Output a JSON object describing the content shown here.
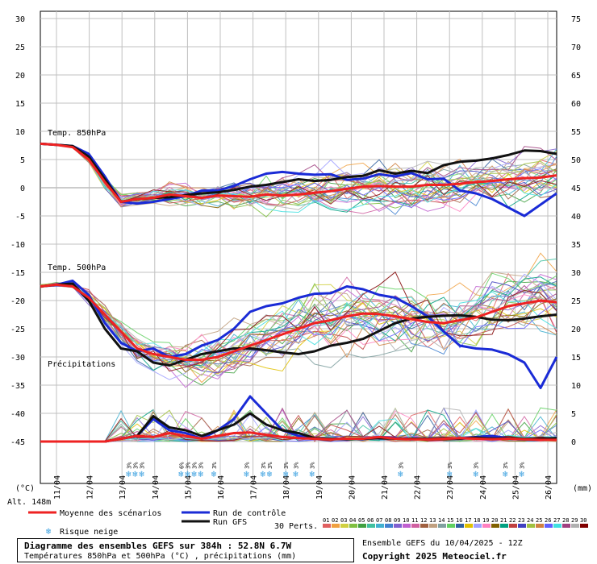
{
  "chart_data": {
    "type": "line",
    "left_axis": {
      "unit": "(°C)",
      "ticks": [
        30,
        25,
        20,
        15,
        10,
        5,
        0,
        -5,
        -10,
        -15,
        -20,
        -25,
        -30,
        -35,
        -40,
        -45
      ],
      "ylim": [
        -45,
        30
      ]
    },
    "right_axis": {
      "unit": "(mm)",
      "ticks": [
        75,
        70,
        65,
        60,
        55,
        50,
        45,
        40,
        35,
        30,
        25,
        20,
        15,
        10,
        5,
        0
      ],
      "ylim": [
        0,
        75
      ]
    },
    "x_tick_labels": [
      "11/04",
      "12/04",
      "13/04",
      "14/04",
      "15/04",
      "16/04",
      "17/04",
      "18/04",
      "19/04",
      "20/04",
      "21/04",
      "22/04",
      "23/04",
      "24/04",
      "25/04",
      "26/04"
    ],
    "grid": true,
    "panel_labels": {
      "t850": "Temp. 850hPa",
      "t500": "Temp. 500hPa",
      "precip": "Précipitations"
    },
    "altitude": "Alt. 148m",
    "series": [
      {
        "name": "Moyenne des scénarios",
        "color": "#ee2222",
        "t850": [
          7.8,
          7.6,
          7.2,
          5,
          1,
          -2.5,
          -2,
          -1.8,
          -1.2,
          -1.5,
          -1.8,
          -1.4,
          -1.5,
          -1.6,
          -1.2,
          -1.4,
          -1.2,
          -0.9,
          -0.6,
          -0.2,
          0.2,
          0.3,
          0.2,
          0.2,
          0.5,
          0.5,
          0.7,
          1,
          1.2,
          1.5,
          1.7,
          1.8,
          2.2
        ],
        "t500": [
          -17.5,
          -17.2,
          -17.5,
          -19.5,
          -22.5,
          -25.5,
          -28.5,
          -29.5,
          -30,
          -30.5,
          -30.5,
          -30,
          -29,
          -28,
          -27,
          -26,
          -25,
          -24,
          -23.5,
          -22.8,
          -22.3,
          -22.4,
          -22.8,
          -23.3,
          -23.8,
          -24,
          -23.5,
          -23,
          -22,
          -21,
          -20.5,
          -20,
          -20.3
        ],
        "precip": [
          0,
          0,
          0,
          0,
          0,
          0.5,
          1,
          0.8,
          1.5,
          1,
          0.5,
          1,
          1.5,
          1.6,
          1.2,
          0.8,
          0.6,
          0.5,
          0.4,
          0.5,
          0.5,
          0.8,
          0.5,
          0.4,
          0.4,
          0.5,
          0.6,
          0.5,
          0.4,
          0.5,
          0.4,
          0.3,
          0.3
        ]
      },
      {
        "name": "Run de contrôle",
        "color": "#1a2bd6",
        "t850": [
          7.8,
          7.6,
          7.4,
          6,
          2,
          -2.5,
          -2.8,
          -2.5,
          -2,
          -1.5,
          -0.5,
          -0.5,
          0.3,
          1.5,
          2.5,
          2.8,
          2.5,
          2.3,
          2.4,
          1.4,
          1.6,
          2.4,
          2,
          2.6,
          1.5,
          1.6,
          -0.5,
          -1,
          -2,
          -3.5,
          -5,
          -3,
          -1
        ],
        "t500": [
          -17.5,
          -17.2,
          -16.5,
          -19,
          -24,
          -27.5,
          -29,
          -28.5,
          -30,
          -29.5,
          -28,
          -27,
          -25,
          -22,
          -21,
          -20.5,
          -19.5,
          -18.8,
          -18.7,
          -17.5,
          -18,
          -19,
          -19.5,
          -21,
          -22.8,
          -25.5,
          -28,
          -28.5,
          -28.7,
          -29.5,
          -31,
          -35.5,
          -30
        ],
        "precip": [
          0,
          0,
          0,
          0,
          0,
          0.5,
          1,
          4,
          2,
          1.5,
          0.5,
          2,
          4,
          8,
          5,
          2,
          1,
          0.6,
          0.5,
          0.5,
          0.4,
          0.8,
          0.6,
          0.4,
          0.5,
          0.6,
          0.5,
          0.8,
          1,
          0.6,
          0.4,
          0.5,
          0.6
        ]
      },
      {
        "name": "Run GFS",
        "color": "#111111",
        "t850": [
          7.8,
          7.6,
          7.4,
          5.5,
          1.5,
          -2.5,
          -2,
          -1.8,
          -1.7,
          -1.3,
          -1,
          -0.8,
          -0.4,
          0.2,
          0.5,
          1,
          1.5,
          1.2,
          1.4,
          1.9,
          2.1,
          3.1,
          2.5,
          3,
          2.6,
          4,
          4.6,
          4.8,
          5.2,
          5.8,
          6.6,
          6.5,
          6
        ],
        "t500": [
          -17.5,
          -17.2,
          -17,
          -20,
          -25,
          -28.5,
          -29,
          -31,
          -31.5,
          -30.5,
          -29.5,
          -29,
          -28.5,
          -28.5,
          -28.8,
          -29.2,
          -29.5,
          -29,
          -28,
          -27.5,
          -26.8,
          -25.4,
          -24,
          -23.2,
          -22.9,
          -22.7,
          -22.6,
          -22.9,
          -23.4,
          -23.5,
          -23.2,
          -22.8,
          -22.5
        ],
        "precip": [
          0,
          0,
          0,
          0,
          0,
          0.5,
          1,
          4.5,
          2.5,
          2,
          1,
          2,
          3,
          5,
          3,
          2,
          1.5,
          0.6,
          0.5,
          0.4,
          0.5,
          0.6,
          0.5,
          0.5,
          0.5,
          0.6,
          0.5,
          0.7,
          0.5,
          0.6,
          0.5,
          0.5,
          0.6
        ]
      }
    ],
    "ensemble": {
      "legend_label": "30 Perts.",
      "members": [
        "01",
        "02",
        "03",
        "04",
        "05",
        "06",
        "07",
        "08",
        "09",
        "10",
        "11",
        "12",
        "13",
        "14",
        "15",
        "16",
        "17",
        "18",
        "19",
        "20",
        "21",
        "22",
        "23",
        "24",
        "25",
        "26",
        "27",
        "28",
        "29",
        "30"
      ]
    },
    "snow_risk_days": [
      13.2,
      13.4,
      13.6,
      14.8,
      15.0,
      15.2,
      15.4,
      15.8,
      16.8,
      17.3,
      17.5,
      18.0,
      18.3,
      18.8,
      21.5,
      23.0,
      23.8,
      24.7,
      25.2
    ],
    "snow_risk_labels": [
      "3%",
      "3%",
      "3%",
      "6%",
      "3%",
      "3%",
      "3%",
      "3%",
      "3%",
      "3%",
      "3%",
      "3%",
      "3%",
      "3%",
      "3%",
      "3%",
      "3%",
      "3%",
      "3%"
    ]
  },
  "legend": {
    "mean": "Moyenne des scénarios",
    "control": "Run de contrôle",
    "gfs": "Run GFS",
    "snow": "Risque neige",
    "perts": "30 Perts."
  },
  "colors": {
    "mean": "#ee2222",
    "control": "#1a2bd6",
    "gfs": "#111111",
    "grid": "#c0c0c0",
    "members": [
      "#e06060",
      "#f0a040",
      "#d0d040",
      "#80c040",
      "#40a040",
      "#40c0a0",
      "#40b0d0",
      "#4080d0",
      "#8060d0",
      "#c060d0",
      "#d060a0",
      "#a06040",
      "#c0a080",
      "#80a0a0",
      "#60d060",
      "#3060a0",
      "#e0c000",
      "#a0a0ff",
      "#ff80c0",
      "#806000",
      "#00a080",
      "#c04040",
      "#4040c0",
      "#a0c040",
      "#d08040",
      "#6060ff",
      "#40e0e0",
      "#a04080",
      "#b0b0b0",
      "#800000"
    ]
  },
  "footer": {
    "title": "Diagramme des ensembles GEFS sur 384h : 52.8N 6.7W",
    "subtitle": "Températures 850hPa et 500hPa (°C) , précipitations (mm)",
    "run": "Ensemble GEFS du 10/04/2025 - 12Z",
    "copyright": "Copyright 2025 Meteociel.fr"
  }
}
